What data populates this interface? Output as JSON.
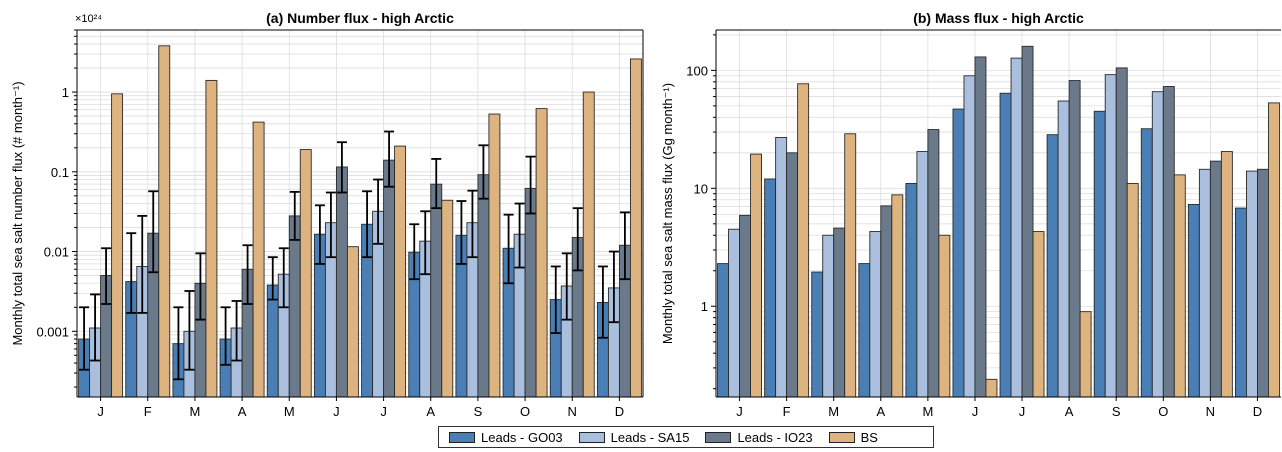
{
  "colors": {
    "Leads - GO03": "#4a7fb5",
    "Leads - SA15": "#a9bfdd",
    "Leads - IO23": "#6b7a8b",
    "BS": "#ddb47f"
  },
  "legend": {
    "items": [
      "Leads - GO03",
      "Leads - SA15",
      "Leads - IO23",
      "BS"
    ],
    "placement": "bottom-center"
  },
  "chart_data": [
    {
      "type": "bar",
      "title": "(a) Number flux - high Arctic",
      "ylabel": "Monthly total sea salt number flux (# month⁻¹)",
      "yscale": "log",
      "exponent_label": "×10²⁴",
      "ylim": [
        0.00015,
        6
      ],
      "yticks": [
        0.001,
        0.01,
        0.1,
        1
      ],
      "ytick_labels": [
        "0.001",
        "0.01",
        "0.1",
        "1"
      ],
      "grid": true,
      "categories": [
        "J",
        "F",
        "M",
        "A",
        "M",
        "J",
        "J",
        "A",
        "S",
        "O",
        "N",
        "D"
      ],
      "series": [
        {
          "name": "Leads - GO03",
          "values": [
            0.0008,
            0.0042,
            0.0007,
            0.0008,
            0.0038,
            0.0165,
            0.022,
            0.0098,
            0.016,
            0.011,
            0.0025,
            0.0023
          ],
          "err_low": [
            0.00033,
            0.0017,
            0.00025,
            0.00038,
            0.0025,
            0.007,
            0.0085,
            0.0045,
            0.007,
            0.004,
            0.00095,
            0.00083
          ],
          "err_high": [
            0.002,
            0.017,
            0.002,
            0.002,
            0.0085,
            0.038,
            0.057,
            0.022,
            0.043,
            0.029,
            0.0065,
            0.0065
          ]
        },
        {
          "name": "Leads - SA15",
          "values": [
            0.0011,
            0.0065,
            0.001,
            0.0011,
            0.0052,
            0.023,
            0.032,
            0.0135,
            0.023,
            0.0165,
            0.0037,
            0.0035
          ],
          "err_low": [
            0.00043,
            0.0017,
            0.00033,
            0.00043,
            0.002,
            0.0085,
            0.0125,
            0.0052,
            0.0085,
            0.0063,
            0.0014,
            0.0013
          ],
          "err_high": [
            0.0029,
            0.028,
            0.0032,
            0.0024,
            0.011,
            0.055,
            0.08,
            0.032,
            0.058,
            0.04,
            0.0095,
            0.01
          ]
        },
        {
          "name": "Leads - IO23",
          "values": [
            0.005,
            0.017,
            0.004,
            0.006,
            0.028,
            0.115,
            0.14,
            0.07,
            0.092,
            0.062,
            0.015,
            0.012
          ],
          "err_low": [
            0.0022,
            0.0055,
            0.0014,
            0.0022,
            0.014,
            0.055,
            0.065,
            0.035,
            0.046,
            0.03,
            0.0058,
            0.0045
          ],
          "err_high": [
            0.011,
            0.057,
            0.0095,
            0.012,
            0.056,
            0.235,
            0.32,
            0.145,
            0.215,
            0.155,
            0.035,
            0.031
          ]
        },
        {
          "name": "BS",
          "values": [
            0.95,
            3.8,
            1.4,
            0.42,
            0.19,
            0.0115,
            0.21,
            0.044,
            0.53,
            0.62,
            1.0,
            2.6
          ]
        }
      ]
    },
    {
      "type": "bar",
      "title": "(b) Mass flux - high Arctic",
      "ylabel": "Monthly total sea salt mass flux (Gg month⁻¹)",
      "yscale": "log",
      "ylim": [
        0.17,
        220
      ],
      "yticks": [
        1,
        10,
        100
      ],
      "ytick_labels": [
        "1",
        "10",
        "100"
      ],
      "grid": true,
      "categories": [
        "J",
        "F",
        "M",
        "A",
        "M",
        "J",
        "J",
        "A",
        "S",
        "O",
        "N",
        "D"
      ],
      "series": [
        {
          "name": "Leads - GO03",
          "values": [
            2.3,
            12,
            1.95,
            2.3,
            11,
            47,
            64,
            28.5,
            45,
            32,
            7.3,
            6.8
          ]
        },
        {
          "name": "Leads - SA15",
          "values": [
            4.5,
            27,
            4.0,
            4.3,
            20.5,
            90,
            127,
            55,
            92,
            66,
            14.5,
            14
          ]
        },
        {
          "name": "Leads - IO23",
          "values": [
            5.9,
            20,
            4.6,
            7.1,
            31.5,
            130,
            160,
            82,
            105,
            73,
            17,
            14.5
          ]
        },
        {
          "name": "BS",
          "values": [
            19.5,
            77,
            29,
            8.8,
            4.0,
            0.24,
            4.3,
            0.9,
            11,
            13,
            20.5,
            53
          ]
        }
      ]
    }
  ]
}
